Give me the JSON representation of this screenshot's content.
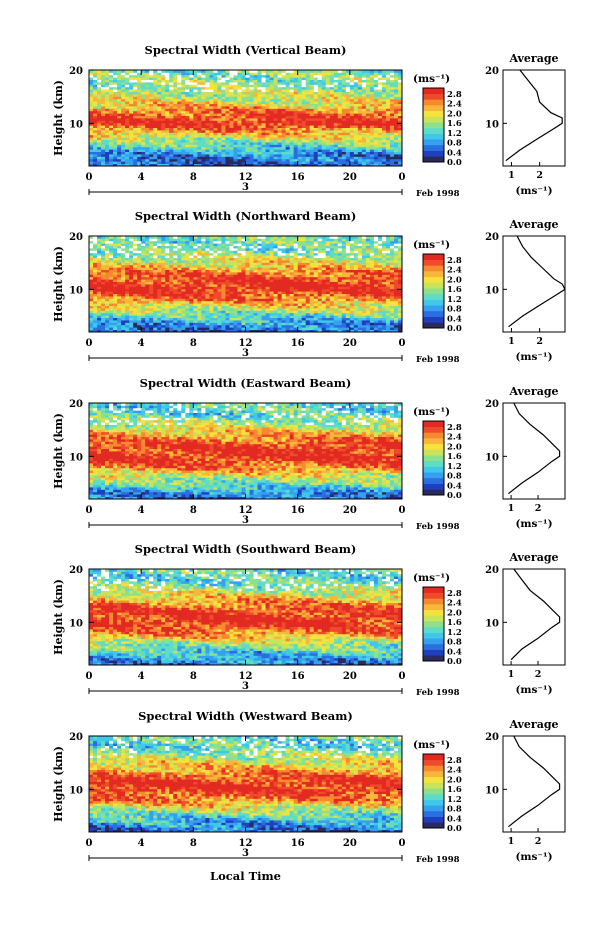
{
  "figure": {
    "xlabel": "Local Time",
    "date_label": "Feb 1998",
    "day_label": "3",
    "average_title": "Average",
    "units_label": "(ms⁻¹)",
    "colorbar_ticks": [
      "0.0",
      "0.4",
      "0.8",
      "1.2",
      "1.6",
      "2.0",
      "2.4",
      "2.8"
    ],
    "colormap": [
      "#2b2a5e",
      "#1f3fbf",
      "#2a6fe0",
      "#35a0f0",
      "#3fc8e8",
      "#5fdcc8",
      "#8ee08a",
      "#c9e35a",
      "#f5e23c",
      "#f8b73a",
      "#f58a2f",
      "#ef4a2a",
      "#e22a22"
    ],
    "xticks": [
      "0",
      "4",
      "8",
      "12",
      "16",
      "20",
      "0"
    ],
    "yticks": [
      "20",
      "10"
    ],
    "ylabel": "Height (km)"
  },
  "chart_data": [
    {
      "type": "heatmap",
      "title": "Spectral Width (Vertical Beam)",
      "xlabel": "Local Time",
      "ylabel": "Height (km)",
      "x_range": [
        0,
        24
      ],
      "y_range": [
        2,
        20
      ],
      "color_range": [
        0.0,
        3.0
      ],
      "heights_km": [
        2,
        4,
        6,
        8,
        10,
        12,
        14,
        16,
        18,
        20
      ],
      "typical_width_ms": [
        0.4,
        0.7,
        1.3,
        2.1,
        2.9,
        2.6,
        1.9,
        1.6,
        1.5,
        1.4
      ],
      "average_profile": {
        "xticks": [
          "1",
          "2"
        ],
        "xlim": [
          0.7,
          2.9
        ],
        "height": [
          3,
          5,
          7,
          9,
          10,
          11,
          12,
          14,
          16,
          18,
          20
        ],
        "width": [
          0.8,
          1.3,
          1.9,
          2.5,
          2.8,
          2.8,
          2.4,
          2.0,
          1.9,
          1.6,
          1.3
        ]
      }
    },
    {
      "type": "heatmap",
      "title": "Spectral Width (Northward Beam)",
      "xlabel": "Local Time",
      "ylabel": "Height (km)",
      "x_range": [
        0,
        24
      ],
      "y_range": [
        2,
        20
      ],
      "color_range": [
        0.0,
        3.0
      ],
      "heights_km": [
        2,
        4,
        6,
        8,
        10,
        12,
        14,
        16,
        18,
        20
      ],
      "typical_width_ms": [
        0.5,
        0.9,
        1.6,
        2.4,
        2.9,
        2.8,
        2.2,
        1.7,
        1.3,
        1.4
      ],
      "average_profile": {
        "xticks": [
          "1",
          "2"
        ],
        "xlim": [
          0.7,
          2.9
        ],
        "height": [
          3,
          5,
          7,
          9,
          10,
          11,
          12,
          14,
          16,
          18,
          20
        ],
        "width": [
          0.9,
          1.4,
          2.0,
          2.6,
          2.9,
          2.8,
          2.5,
          2.1,
          1.7,
          1.4,
          1.2
        ]
      }
    },
    {
      "type": "heatmap",
      "title": "Spectral Width (Eastward Beam)",
      "xlabel": "Local Time",
      "ylabel": "Height (km)",
      "x_range": [
        0,
        24
      ],
      "y_range": [
        2,
        20
      ],
      "color_range": [
        0.0,
        3.0
      ],
      "heights_km": [
        2,
        4,
        6,
        8,
        10,
        12,
        14,
        16,
        18,
        20
      ],
      "typical_width_ms": [
        0.5,
        1.0,
        1.7,
        2.5,
        2.9,
        2.8,
        2.3,
        1.7,
        1.2,
        1.3
      ],
      "average_profile": {
        "xticks": [
          "1",
          "2"
        ],
        "xlim": [
          0.7,
          3.0
        ],
        "height": [
          3,
          5,
          7,
          9,
          10,
          11,
          12,
          14,
          16,
          18,
          20
        ],
        "width": [
          0.9,
          1.4,
          2.0,
          2.5,
          2.8,
          2.8,
          2.6,
          2.2,
          1.7,
          1.3,
          1.1
        ]
      }
    },
    {
      "type": "heatmap",
      "title": "Spectral Width (Southward Beam)",
      "xlabel": "Local Time",
      "ylabel": "Height (km)",
      "x_range": [
        0,
        24
      ],
      "y_range": [
        2,
        20
      ],
      "color_range": [
        0.0,
        3.0
      ],
      "heights_km": [
        2,
        4,
        6,
        8,
        10,
        12,
        14,
        16,
        18,
        20
      ],
      "typical_width_ms": [
        0.6,
        1.0,
        1.6,
        2.4,
        2.9,
        2.8,
        2.3,
        1.7,
        1.2,
        1.3
      ],
      "average_profile": {
        "xticks": [
          "1",
          "2"
        ],
        "xlim": [
          0.7,
          3.0
        ],
        "height": [
          3,
          5,
          7,
          9,
          10,
          11,
          12,
          14,
          16,
          18,
          20
        ],
        "width": [
          1.0,
          1.4,
          2.0,
          2.5,
          2.8,
          2.8,
          2.6,
          2.2,
          1.7,
          1.4,
          1.1
        ]
      }
    },
    {
      "type": "heatmap",
      "title": "Spectral Width (Westward Beam)",
      "xlabel": "Local Time",
      "ylabel": "Height (km)",
      "x_range": [
        0,
        24
      ],
      "y_range": [
        2,
        20
      ],
      "color_range": [
        0.0,
        3.0
      ],
      "heights_km": [
        2,
        4,
        6,
        8,
        10,
        12,
        14,
        16,
        18,
        20
      ],
      "typical_width_ms": [
        0.5,
        0.9,
        1.6,
        2.4,
        2.9,
        2.8,
        2.2,
        1.7,
        1.2,
        1.3
      ],
      "average_profile": {
        "xticks": [
          "1",
          "2"
        ],
        "xlim": [
          0.7,
          3.0
        ],
        "height": [
          3,
          5,
          7,
          9,
          10,
          11,
          12,
          14,
          16,
          18,
          20
        ],
        "width": [
          0.9,
          1.4,
          2.0,
          2.5,
          2.8,
          2.8,
          2.6,
          2.2,
          1.7,
          1.3,
          1.1
        ]
      }
    }
  ]
}
